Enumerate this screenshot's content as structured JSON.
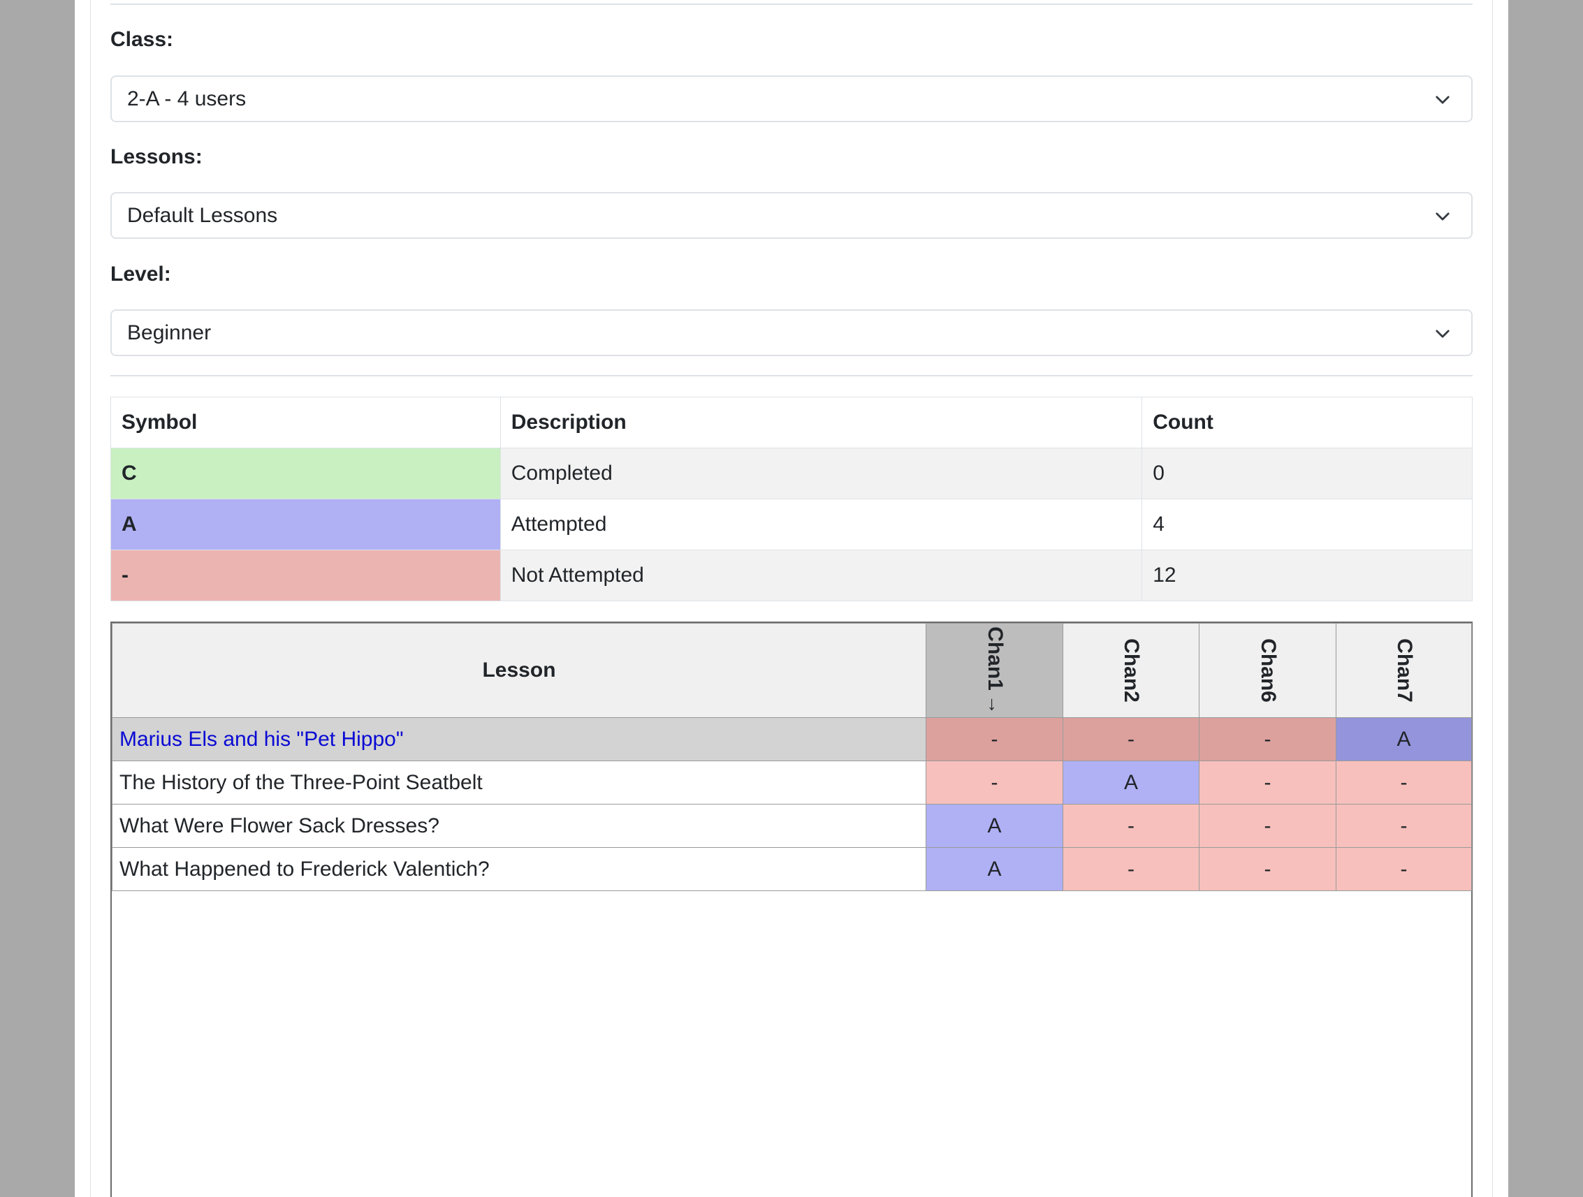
{
  "filters": {
    "class": {
      "label": "Class:",
      "value": "2-A - 4 users"
    },
    "lessons": {
      "label": "Lessons:",
      "value": "Default Lessons"
    },
    "level": {
      "label": "Level:",
      "value": "Beginner"
    }
  },
  "legend": {
    "headers": {
      "symbol": "Symbol",
      "description": "Description",
      "count": "Count"
    },
    "rows": [
      {
        "symbol": "C",
        "description": "Completed",
        "count": "0",
        "color": "#c8f0c0"
      },
      {
        "symbol": "A",
        "description": "Attempted",
        "count": "4",
        "color": "#b0b0f5"
      },
      {
        "symbol": "-",
        "description": "Not Attempted",
        "count": "12",
        "color": "#ecb4b1"
      }
    ]
  },
  "grid": {
    "lesson_header": "Lesson",
    "sort_icon": "arrow-down-icon",
    "columns": [
      "Chan1",
      "Chan2",
      "Chan6",
      "Chan7"
    ],
    "rows": [
      {
        "lesson": "Marius Els and his \"Pet Hippo\"",
        "cells": [
          "-",
          "-",
          "-",
          "A"
        ]
      },
      {
        "lesson": "The History of the Three-Point Seatbelt",
        "cells": [
          "-",
          "A",
          "-",
          "-"
        ]
      },
      {
        "lesson": "What Were Flower Sack Dresses?",
        "cells": [
          "A",
          "-",
          "-",
          "-"
        ]
      },
      {
        "lesson": "What Happened to Frederick Valentich?",
        "cells": [
          "A",
          "-",
          "-",
          "-"
        ]
      }
    ]
  },
  "colors": {
    "completed": "#c8f0c0",
    "attempted": "#b0b0f5",
    "not_attempted": "#f7c0bc",
    "link": "#0a0ad4"
  }
}
